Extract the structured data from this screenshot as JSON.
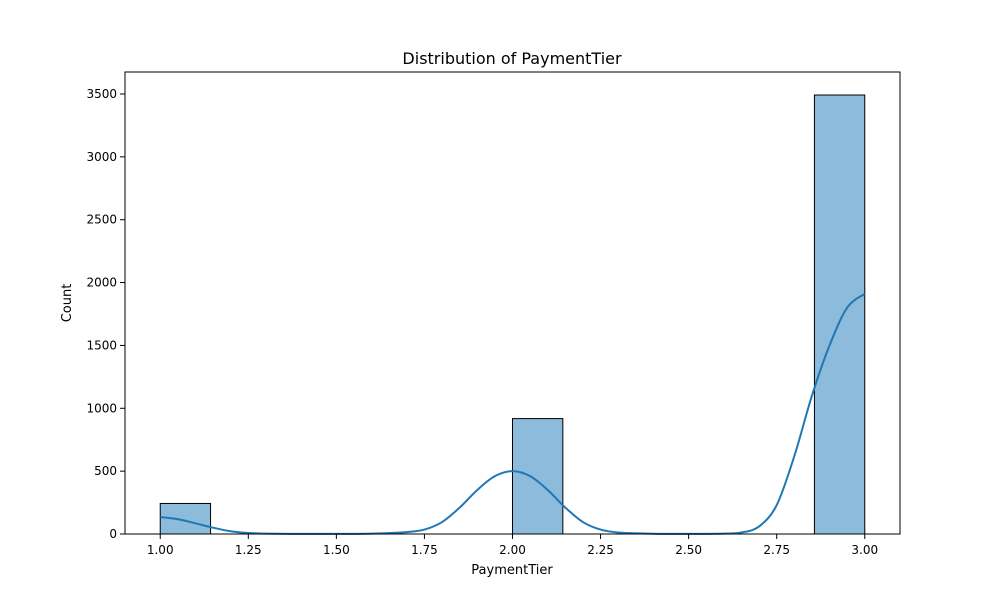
{
  "chart_data": {
    "type": "bar",
    "title": "Distribution of PaymentTier",
    "xlabel": "PaymentTier",
    "ylabel": "Count",
    "xlim": [
      0.9,
      3.1
    ],
    "ylim": [
      0,
      3675
    ],
    "xticks": [
      "1.00",
      "1.25",
      "1.50",
      "1.75",
      "2.00",
      "2.25",
      "2.50",
      "2.75",
      "3.00"
    ],
    "yticks": [
      "0",
      "500",
      "1000",
      "1500",
      "2000",
      "2500",
      "3000",
      "3500"
    ],
    "bins": [
      {
        "x0": 1.0,
        "x1": 1.1429,
        "count": 243
      },
      {
        "x0": 1.1429,
        "x1": 1.2857,
        "count": 0
      },
      {
        "x0": 1.2857,
        "x1": 1.4286,
        "count": 0
      },
      {
        "x0": 1.4286,
        "x1": 1.5714,
        "count": 0
      },
      {
        "x0": 1.5714,
        "x1": 1.7143,
        "count": 0
      },
      {
        "x0": 1.7143,
        "x1": 1.8571,
        "count": 0
      },
      {
        "x0": 1.8571,
        "x1": 2.0,
        "count": 0
      },
      {
        "x0": 2.0,
        "x1": 2.1429,
        "count": 918
      },
      {
        "x0": 2.1429,
        "x1": 2.2857,
        "count": 0
      },
      {
        "x0": 2.2857,
        "x1": 2.4286,
        "count": 0
      },
      {
        "x0": 2.4286,
        "x1": 2.5714,
        "count": 0
      },
      {
        "x0": 2.5714,
        "x1": 2.7143,
        "count": 0
      },
      {
        "x0": 2.7143,
        "x1": 2.8571,
        "count": 0
      },
      {
        "x0": 2.8571,
        "x1": 3.0,
        "count": 3492
      }
    ],
    "kde": {
      "x": [
        1.0,
        1.05,
        1.1,
        1.15,
        1.2,
        1.25,
        1.3,
        1.4,
        1.5,
        1.6,
        1.7,
        1.75,
        1.8,
        1.85,
        1.9,
        1.95,
        2.0,
        2.05,
        2.1,
        2.15,
        2.2,
        2.25,
        2.3,
        2.4,
        2.5,
        2.6,
        2.65,
        2.7,
        2.75,
        2.8,
        2.85,
        2.9,
        2.95,
        3.0
      ],
      "y": [
        135,
        118,
        85,
        50,
        22,
        8,
        3,
        1,
        1,
        3,
        15,
        35,
        95,
        210,
        350,
        460,
        500,
        460,
        350,
        210,
        95,
        35,
        12,
        2,
        1,
        3,
        12,
        60,
        230,
        620,
        1100,
        1500,
        1800,
        1910
      ]
    },
    "bar_color": "#8dbbdb",
    "bar_edge_color": "#000000",
    "line_color": "#1f77b4",
    "grid": false,
    "legend": "none"
  }
}
